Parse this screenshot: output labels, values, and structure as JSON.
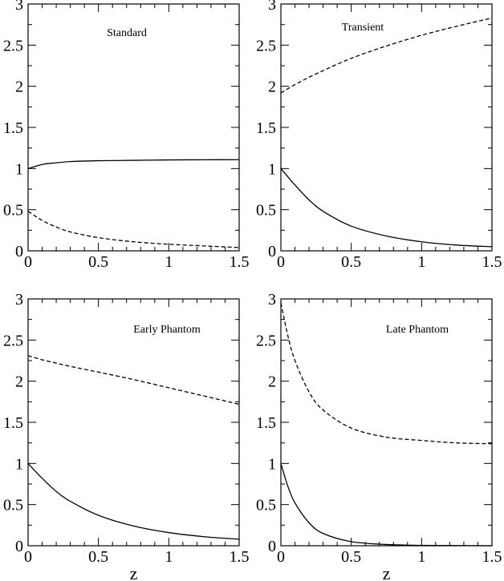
{
  "chart_data": [
    {
      "type": "line",
      "title": "Standard",
      "xlabel": "",
      "ylabel": "",
      "xlim": [
        0,
        1.5
      ],
      "ylim": [
        0,
        3
      ],
      "xticks": [
        "0",
        "0.5",
        "1",
        "1.5"
      ],
      "yticks": [
        "0",
        "0.5",
        "1",
        "1.5",
        "2",
        "2.5",
        "3"
      ],
      "series": [
        {
          "style": "solid",
          "x": [
            0,
            0.1,
            0.2,
            0.3,
            0.5,
            0.75,
            1.0,
            1.25,
            1.5
          ],
          "y": [
            1.0,
            1.05,
            1.07,
            1.085,
            1.095,
            1.1,
            1.105,
            1.107,
            1.108
          ]
        },
        {
          "style": "dashed",
          "x": [
            0,
            0.1,
            0.2,
            0.3,
            0.5,
            0.75,
            1.0,
            1.25,
            1.5
          ],
          "y": [
            0.48,
            0.37,
            0.29,
            0.23,
            0.16,
            0.11,
            0.08,
            0.06,
            0.04
          ]
        }
      ]
    },
    {
      "type": "line",
      "title": "Transient",
      "xlabel": "",
      "ylabel": "",
      "xlim": [
        0,
        1.5
      ],
      "ylim": [
        0,
        3
      ],
      "xticks": [
        "0",
        "0.5",
        "1",
        "1.5"
      ],
      "yticks": [
        "0",
        "0.5",
        "1",
        "1.5",
        "2",
        "2.5",
        "3"
      ],
      "series": [
        {
          "style": "solid",
          "x": [
            0,
            0.1,
            0.2,
            0.3,
            0.5,
            0.75,
            1.0,
            1.25,
            1.5
          ],
          "y": [
            1.0,
            0.8,
            0.62,
            0.48,
            0.3,
            0.18,
            0.11,
            0.07,
            0.05
          ]
        },
        {
          "style": "dashed",
          "x": [
            0,
            0.1,
            0.2,
            0.3,
            0.5,
            0.75,
            1.0,
            1.25,
            1.5
          ],
          "y": [
            1.92,
            2.02,
            2.11,
            2.19,
            2.34,
            2.49,
            2.62,
            2.73,
            2.83
          ]
        }
      ]
    },
    {
      "type": "line",
      "title": "Early Phantom",
      "xlabel": "z",
      "ylabel": "",
      "xlim": [
        0,
        1.5
      ],
      "ylim": [
        0,
        3
      ],
      "xticks": [
        "0",
        "0.5",
        "1",
        "1.5"
      ],
      "yticks": [
        "0",
        "0.5",
        "1",
        "1.5",
        "2",
        "2.5",
        "3"
      ],
      "series": [
        {
          "style": "solid",
          "x": [
            0,
            0.1,
            0.2,
            0.3,
            0.5,
            0.75,
            1.0,
            1.25,
            1.5
          ],
          "y": [
            1.0,
            0.82,
            0.66,
            0.54,
            0.37,
            0.24,
            0.16,
            0.11,
            0.08
          ]
        },
        {
          "style": "dashed",
          "x": [
            0,
            0.1,
            0.2,
            0.3,
            0.5,
            0.75,
            1.0,
            1.25,
            1.5
          ],
          "y": [
            2.31,
            2.26,
            2.22,
            2.18,
            2.11,
            2.02,
            1.92,
            1.82,
            1.72
          ]
        }
      ]
    },
    {
      "type": "line",
      "title": "Late Phantom",
      "xlabel": "z",
      "ylabel": "",
      "xlim": [
        0,
        1.5
      ],
      "ylim": [
        0,
        3
      ],
      "xticks": [
        "0",
        "0.5",
        "1",
        "1.5"
      ],
      "yticks": [
        "0",
        "0.5",
        "1",
        "1.5",
        "2",
        "2.5",
        "3"
      ],
      "series": [
        {
          "style": "solid",
          "x": [
            0,
            0.05,
            0.1,
            0.2,
            0.3,
            0.5,
            0.75,
            1.0,
            1.25,
            1.5
          ],
          "y": [
            1.0,
            0.72,
            0.52,
            0.28,
            0.15,
            0.05,
            0.015,
            0.005,
            0.002,
            0.0
          ]
        },
        {
          "style": "dashed",
          "x": [
            0,
            0.05,
            0.1,
            0.2,
            0.3,
            0.5,
            0.75,
            1.0,
            1.25,
            1.5
          ],
          "y": [
            2.95,
            2.55,
            2.25,
            1.87,
            1.65,
            1.43,
            1.32,
            1.28,
            1.25,
            1.24
          ]
        }
      ]
    }
  ]
}
